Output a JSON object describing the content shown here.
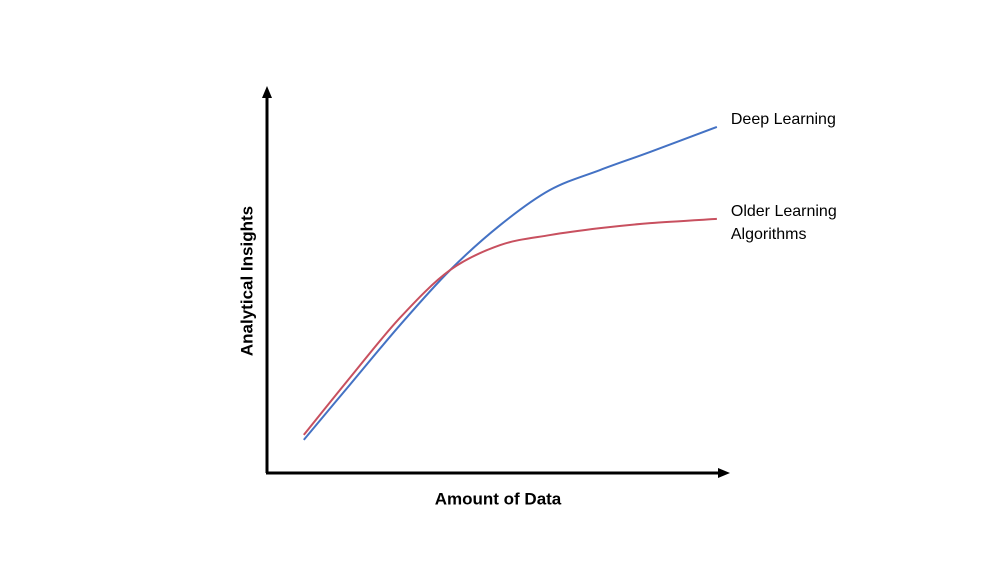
{
  "chart_data": {
    "type": "line",
    "x_label": "Amount of Data",
    "y_label": "Analytical Insights",
    "x": [
      8,
      18,
      28.9,
      39.8,
      50.7,
      61.5,
      72.4,
      83.3,
      97.8
    ],
    "xlim": [
      0,
      100
    ],
    "ylim": [
      0,
      100
    ],
    "series": [
      {
        "name": "Deep Learning",
        "color": "#4472c4",
        "values": [
          8.6,
          22.9,
          38.4,
          52.7,
          64.4,
          73.5,
          78.7,
          83.4,
          89.9
        ]
      },
      {
        "name": "Older Learning Algorithms",
        "color": "#c8505f",
        "values": [
          9.9,
          24.7,
          40.3,
          52.7,
          59.2,
          61.8,
          63.6,
          64.9,
          66.0
        ]
      }
    ]
  }
}
